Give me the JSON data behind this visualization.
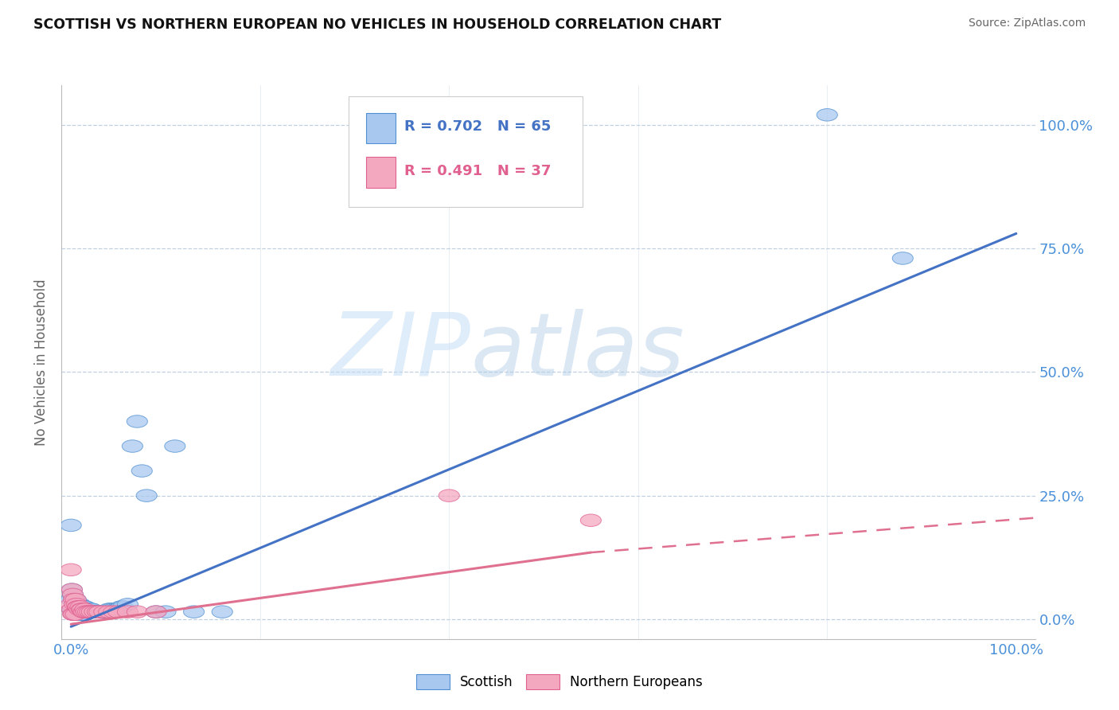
{
  "title": "SCOTTISH VS NORTHERN EUROPEAN NO VEHICLES IN HOUSEHOLD CORRELATION CHART",
  "source_text": "Source: ZipAtlas.com",
  "ylabel": "No Vehicles in Household",
  "watermark_zip": "ZIP",
  "watermark_atlas": "atlas",
  "x_tick_labels": [
    "0.0%",
    "100.0%"
  ],
  "x_tick_positions": [
    0.0,
    1.0
  ],
  "y_tick_labels": [
    "0.0%",
    "25.0%",
    "50.0%",
    "75.0%",
    "100.0%"
  ],
  "y_tick_positions": [
    0.0,
    0.25,
    0.5,
    0.75,
    1.0
  ],
  "scottish_color": "#A8C8F0",
  "northern_color": "#F4A8C0",
  "scottish_edge_color": "#5090D0",
  "northern_edge_color": "#E06090",
  "scottish_line_color": "#4472C4",
  "northern_line_color": "#E07090",
  "legend_R_scottish": "R = 0.702",
  "legend_N_scottish": "N = 65",
  "legend_R_northern": "R = 0.491",
  "legend_N_northern": "N = 37",
  "xlim": [
    -0.01,
    1.02
  ],
  "ylim": [
    -0.04,
    1.08
  ],
  "scottish_line": [
    0.0,
    -0.015,
    1.0,
    0.78
  ],
  "northern_line_solid": [
    0.0,
    -0.01,
    0.55,
    0.135
  ],
  "northern_line_dash": [
    0.55,
    0.135,
    1.02,
    0.205
  ],
  "bg_color": "#FFFFFF",
  "grid_color": "#C0D0E0",
  "title_color": "#111111",
  "tick_label_color": "#4A90D9",
  "ylabel_color": "#666666",
  "source_color": "#666666",
  "legend_text_color_blue": "#4472C4",
  "legend_text_color_pink": "#E06090",
  "scottish_x": [
    0.0,
    0.0,
    0.001,
    0.001,
    0.002,
    0.002,
    0.003,
    0.003,
    0.004,
    0.004,
    0.005,
    0.005,
    0.006,
    0.006,
    0.007,
    0.007,
    0.008,
    0.009,
    0.009,
    0.01,
    0.01,
    0.011,
    0.012,
    0.013,
    0.013,
    0.014,
    0.015,
    0.015,
    0.016,
    0.017,
    0.018,
    0.019,
    0.02,
    0.021,
    0.022,
    0.023,
    0.024,
    0.025,
    0.026,
    0.027,
    0.028,
    0.03,
    0.031,
    0.033,
    0.035,
    0.038,
    0.04,
    0.042,
    0.045,
    0.048,
    0.05,
    0.053,
    0.055,
    0.06,
    0.065,
    0.07,
    0.075,
    0.08,
    0.09,
    0.1,
    0.11,
    0.13,
    0.16,
    0.8,
    0.88
  ],
  "scottish_y": [
    0.19,
    0.04,
    0.06,
    0.02,
    0.05,
    0.02,
    0.04,
    0.01,
    0.04,
    0.01,
    0.04,
    0.01,
    0.03,
    0.01,
    0.03,
    0.01,
    0.02,
    0.03,
    0.01,
    0.03,
    0.01,
    0.02,
    0.02,
    0.025,
    0.01,
    0.025,
    0.025,
    0.01,
    0.02,
    0.02,
    0.02,
    0.02,
    0.02,
    0.02,
    0.02,
    0.015,
    0.015,
    0.015,
    0.015,
    0.015,
    0.015,
    0.015,
    0.015,
    0.015,
    0.015,
    0.015,
    0.02,
    0.02,
    0.02,
    0.02,
    0.02,
    0.025,
    0.025,
    0.03,
    0.35,
    0.4,
    0.3,
    0.25,
    0.015,
    0.015,
    0.35,
    0.015,
    0.015,
    1.02,
    0.73
  ],
  "northern_x": [
    0.0,
    0.0,
    0.001,
    0.001,
    0.002,
    0.002,
    0.003,
    0.003,
    0.004,
    0.005,
    0.005,
    0.006,
    0.007,
    0.008,
    0.009,
    0.01,
    0.011,
    0.012,
    0.013,
    0.014,
    0.015,
    0.016,
    0.018,
    0.02,
    0.022,
    0.025,
    0.028,
    0.03,
    0.035,
    0.04,
    0.045,
    0.05,
    0.06,
    0.07,
    0.09,
    0.4,
    0.55
  ],
  "northern_y": [
    0.1,
    0.03,
    0.06,
    0.02,
    0.05,
    0.01,
    0.04,
    0.01,
    0.03,
    0.04,
    0.01,
    0.03,
    0.025,
    0.025,
    0.02,
    0.025,
    0.02,
    0.02,
    0.015,
    0.015,
    0.02,
    0.015,
    0.015,
    0.015,
    0.015,
    0.015,
    0.015,
    0.015,
    0.015,
    0.015,
    0.015,
    0.015,
    0.015,
    0.015,
    0.015,
    0.25,
    0.2
  ]
}
